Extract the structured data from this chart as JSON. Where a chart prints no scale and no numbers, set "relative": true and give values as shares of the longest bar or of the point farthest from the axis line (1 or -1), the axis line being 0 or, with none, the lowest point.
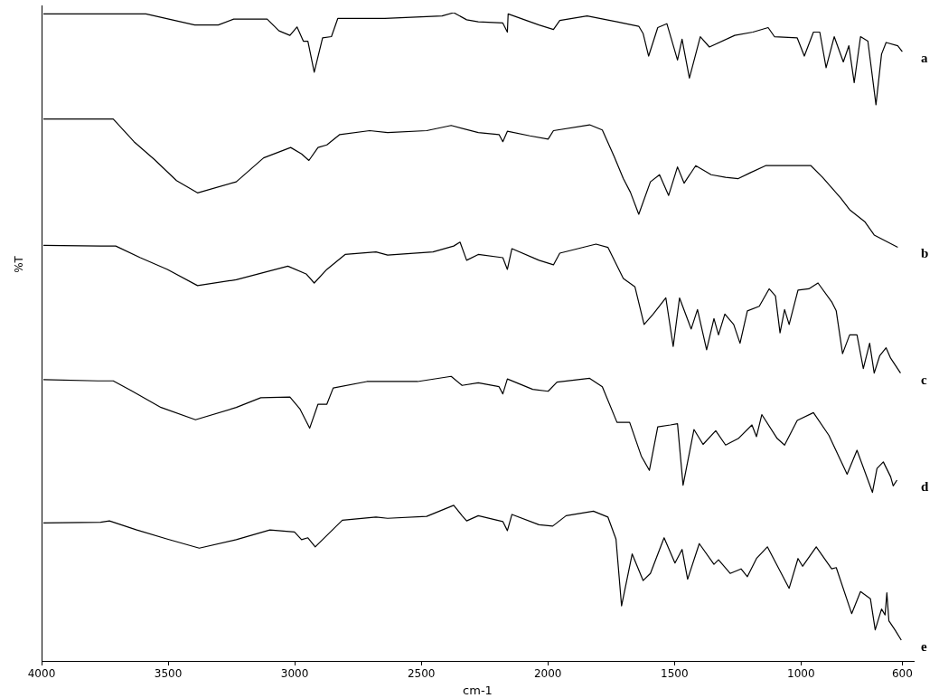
{
  "chart_data": {
    "type": "line",
    "relative": true,
    "xlabel": "cm-1",
    "ylabel": "%T",
    "xlim": [
      4000,
      555
    ],
    "xticks": [
      4000,
      3500,
      3000,
      2500,
      2000,
      1500,
      1000,
      600
    ],
    "grid": false,
    "legend": false,
    "marker": "none",
    "line_style": "solid",
    "series": [
      {
        "name": "a",
        "color": "#000000",
        "x": [
          3993,
          3588,
          3395,
          3302,
          3241,
          3109,
          3062,
          3019,
          2991,
          2966,
          2948,
          2923,
          2890,
          2855,
          2830,
          2644,
          2418,
          2372,
          2321,
          2275,
          2178,
          2160,
          2157,
          2035,
          1978,
          1953,
          1845,
          1727,
          1641,
          1624,
          1602,
          1566,
          1530,
          1488,
          1470,
          1441,
          1398,
          1362,
          1262,
          1190,
          1130,
          1105,
          1015,
          987,
          951,
          926,
          901,
          869,
          833,
          811,
          790,
          765,
          736,
          704,
          682,
          664,
          618,
          600
        ],
        "values": [
          0.998,
          0.998,
          0.981,
          0.981,
          0.99,
          0.99,
          0.972,
          0.965,
          0.978,
          0.956,
          0.956,
          0.908,
          0.961,
          0.963,
          0.991,
          0.991,
          0.995,
          1.0,
          0.989,
          0.986,
          0.984,
          0.97,
          0.998,
          0.981,
          0.974,
          0.988,
          0.995,
          0.986,
          0.979,
          0.968,
          0.933,
          0.977,
          0.983,
          0.927,
          0.959,
          0.899,
          0.963,
          0.947,
          0.965,
          0.97,
          0.977,
          0.963,
          0.961,
          0.933,
          0.97,
          0.97,
          0.915,
          0.963,
          0.924,
          0.949,
          0.892,
          0.963,
          0.956,
          0.858,
          0.936,
          0.954,
          0.949,
          0.94
        ]
      },
      {
        "name": "b",
        "color": "#000000",
        "x": [
          3993,
          3717,
          3635,
          3553,
          3467,
          3384,
          3231,
          3123,
          3016,
          2973,
          2944,
          2908,
          2873,
          2822,
          2704,
          2633,
          2479,
          2382,
          2275,
          2193,
          2178,
          2160,
          2071,
          1999,
          1978,
          1835,
          1785,
          1738,
          1702,
          1674,
          1641,
          1595,
          1559,
          1523,
          1488,
          1462,
          1416,
          1355,
          1298,
          1248,
          1201,
          1140,
          961,
          915,
          843,
          808,
          747,
          711,
          618
        ],
        "values": [
          0.836,
          0.836,
          0.801,
          0.773,
          0.741,
          0.722,
          0.739,
          0.776,
          0.792,
          0.782,
          0.772,
          0.792,
          0.796,
          0.812,
          0.818,
          0.815,
          0.818,
          0.826,
          0.815,
          0.812,
          0.801,
          0.817,
          0.81,
          0.805,
          0.818,
          0.827,
          0.819,
          0.778,
          0.744,
          0.723,
          0.689,
          0.739,
          0.75,
          0.718,
          0.762,
          0.737,
          0.764,
          0.75,
          0.746,
          0.744,
          0.753,
          0.764,
          0.764,
          0.746,
          0.714,
          0.696,
          0.677,
          0.657,
          0.638
        ]
      },
      {
        "name": "c",
        "color": "#000000",
        "x": [
          3993,
          3767,
          3707,
          3610,
          3503,
          3384,
          3231,
          3027,
          2955,
          2923,
          2873,
          2801,
          2679,
          2633,
          2454,
          2372,
          2347,
          2321,
          2275,
          2178,
          2160,
          2142,
          2035,
          1978,
          1953,
          1810,
          1763,
          1702,
          1656,
          1620,
          1584,
          1534,
          1505,
          1480,
          1434,
          1409,
          1373,
          1344,
          1326,
          1301,
          1266,
          1241,
          1212,
          1165,
          1126,
          1101,
          1083,
          1065,
          1047,
          1012,
          969,
          933,
          879,
          861,
          836,
          808,
          779,
          754,
          729,
          711,
          689,
          664,
          646,
          607
        ],
        "values": [
          0.641,
          0.64,
          0.64,
          0.622,
          0.604,
          0.579,
          0.588,
          0.609,
          0.597,
          0.583,
          0.604,
          0.627,
          0.631,
          0.626,
          0.631,
          0.64,
          0.646,
          0.618,
          0.627,
          0.622,
          0.604,
          0.636,
          0.618,
          0.611,
          0.629,
          0.643,
          0.638,
          0.59,
          0.577,
          0.519,
          0.535,
          0.56,
          0.485,
          0.56,
          0.512,
          0.542,
          0.48,
          0.528,
          0.503,
          0.535,
          0.519,
          0.49,
          0.54,
          0.547,
          0.574,
          0.563,
          0.506,
          0.542,
          0.519,
          0.572,
          0.574,
          0.583,
          0.554,
          0.54,
          0.474,
          0.503,
          0.503,
          0.451,
          0.49,
          0.444,
          0.471,
          0.483,
          0.467,
          0.444
        ]
      },
      {
        "name": "d",
        "color": "#000000",
        "x": [
          3993,
          3778,
          3717,
          3646,
          3528,
          3392,
          3231,
          3134,
          3019,
          2980,
          2941,
          2908,
          2873,
          2848,
          2715,
          2515,
          2382,
          2339,
          2275,
          2193,
          2178,
          2160,
          2060,
          1999,
          1964,
          1835,
          1785,
          1727,
          1677,
          1631,
          1599,
          1566,
          1516,
          1488,
          1466,
          1423,
          1387,
          1337,
          1298,
          1248,
          1194,
          1176,
          1155,
          1094,
          1065,
          1015,
          951,
          890,
          818,
          779,
          718,
          700,
          675,
          646,
          636,
          621
        ],
        "values": [
          0.434,
          0.432,
          0.432,
          0.417,
          0.391,
          0.372,
          0.391,
          0.406,
          0.407,
          0.389,
          0.359,
          0.396,
          0.396,
          0.421,
          0.431,
          0.431,
          0.439,
          0.425,
          0.429,
          0.423,
          0.412,
          0.435,
          0.419,
          0.416,
          0.43,
          0.436,
          0.423,
          0.368,
          0.368,
          0.316,
          0.294,
          0.361,
          0.364,
          0.366,
          0.271,
          0.357,
          0.334,
          0.355,
          0.333,
          0.343,
          0.364,
          0.346,
          0.38,
          0.343,
          0.333,
          0.371,
          0.383,
          0.348,
          0.288,
          0.325,
          0.26,
          0.297,
          0.307,
          0.284,
          0.27,
          0.279
        ]
      },
      {
        "name": "e",
        "color": "#000000",
        "x": [
          3993,
          3767,
          3732,
          3624,
          3503,
          3377,
          3231,
          3098,
          3001,
          2973,
          2948,
          2919,
          2812,
          2679,
          2633,
          2479,
          2372,
          2339,
          2321,
          2275,
          2178,
          2160,
          2142,
          2035,
          1981,
          1928,
          1820,
          1763,
          1731,
          1709,
          1667,
          1624,
          1595,
          1541,
          1498,
          1470,
          1448,
          1402,
          1344,
          1326,
          1280,
          1237,
          1212,
          1176,
          1133,
          1047,
          1012,
          994,
          940,
          879,
          861,
          800,
          765,
          726,
          707,
          682,
          668,
          661,
          653,
          629,
          604
        ],
        "values": [
          0.213,
          0.214,
          0.216,
          0.202,
          0.188,
          0.174,
          0.187,
          0.202,
          0.199,
          0.187,
          0.19,
          0.176,
          0.217,
          0.222,
          0.22,
          0.223,
          0.24,
          0.224,
          0.216,
          0.224,
          0.215,
          0.201,
          0.226,
          0.21,
          0.208,
          0.224,
          0.231,
          0.222,
          0.188,
          0.085,
          0.165,
          0.124,
          0.135,
          0.19,
          0.151,
          0.172,
          0.126,
          0.181,
          0.149,
          0.156,
          0.135,
          0.142,
          0.13,
          0.158,
          0.176,
          0.112,
          0.158,
          0.146,
          0.176,
          0.142,
          0.144,
          0.073,
          0.107,
          0.096,
          0.048,
          0.08,
          0.071,
          0.105,
          0.062,
          0.048,
          0.032
        ]
      }
    ]
  }
}
